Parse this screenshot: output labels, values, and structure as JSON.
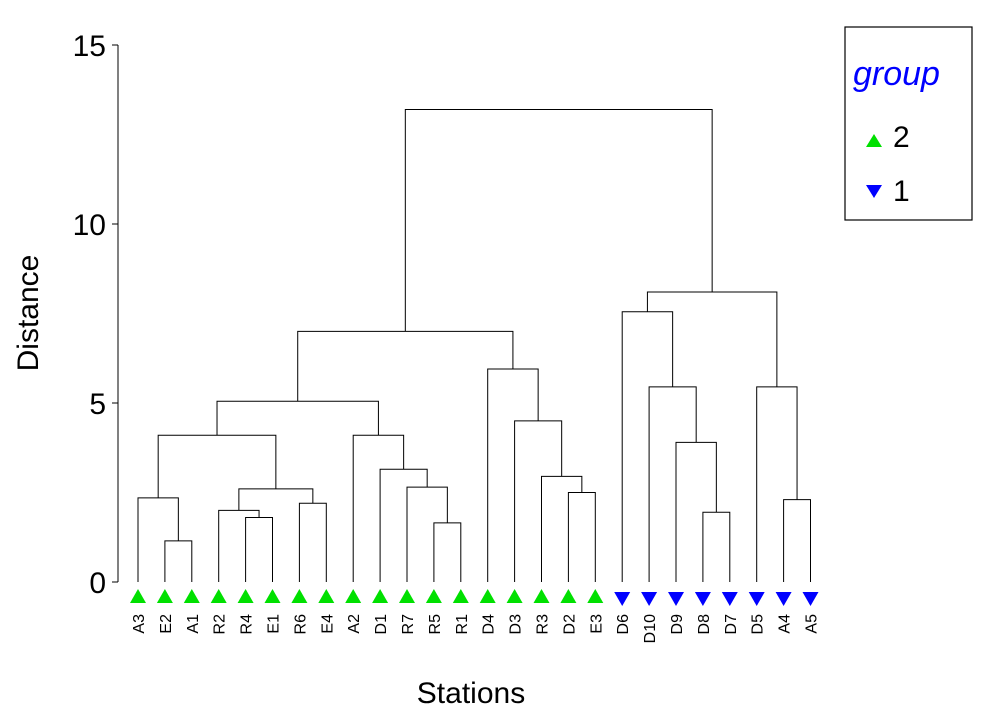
{
  "chart_data": {
    "type": "dendrogram",
    "title": "",
    "xlabel": "Stations",
    "ylabel": "Distance",
    "ylim": [
      0,
      15
    ],
    "yticks": [
      0,
      5,
      10,
      15
    ],
    "leaves": [
      {
        "label": "A3",
        "group": "2"
      },
      {
        "label": "E2",
        "group": "2"
      },
      {
        "label": "A1",
        "group": "2"
      },
      {
        "label": "R2",
        "group": "2"
      },
      {
        "label": "R4",
        "group": "2"
      },
      {
        "label": "E1",
        "group": "2"
      },
      {
        "label": "R6",
        "group": "2"
      },
      {
        "label": "E4",
        "group": "2"
      },
      {
        "label": "A2",
        "group": "2"
      },
      {
        "label": "D1",
        "group": "2"
      },
      {
        "label": "R7",
        "group": "2"
      },
      {
        "label": "R5",
        "group": "2"
      },
      {
        "label": "R1",
        "group": "2"
      },
      {
        "label": "D4",
        "group": "2"
      },
      {
        "label": "D3",
        "group": "2"
      },
      {
        "label": "R3",
        "group": "2"
      },
      {
        "label": "D2",
        "group": "2"
      },
      {
        "label": "E3",
        "group": "2"
      },
      {
        "label": "D6",
        "group": "1"
      },
      {
        "label": "D10",
        "group": "1"
      },
      {
        "label": "D9",
        "group": "1"
      },
      {
        "label": "D8",
        "group": "1"
      },
      {
        "label": "D7",
        "group": "1"
      },
      {
        "label": "D5",
        "group": "1"
      },
      {
        "label": "A4",
        "group": "1"
      },
      {
        "label": "A5",
        "group": "1"
      }
    ],
    "merges": [
      {
        "id": "m1",
        "left": 1,
        "right": 2,
        "height": 1.15
      },
      {
        "id": "m2",
        "left": 0,
        "right": "m1",
        "height": 2.35
      },
      {
        "id": "m3",
        "left": 4,
        "right": 5,
        "height": 1.8
      },
      {
        "id": "m4",
        "left": 3,
        "right": "m3",
        "height": 2.0
      },
      {
        "id": "m5",
        "left": 6,
        "right": 7,
        "height": 2.2
      },
      {
        "id": "m6",
        "left": "m4",
        "right": "m5",
        "height": 2.6
      },
      {
        "id": "m7",
        "left": "m2",
        "right": "m6",
        "height": 4.1
      },
      {
        "id": "m8",
        "left": 11,
        "right": 12,
        "height": 1.65
      },
      {
        "id": "m9",
        "left": 10,
        "right": "m8",
        "height": 2.65
      },
      {
        "id": "m10",
        "left": 9,
        "right": "m9",
        "height": 3.15
      },
      {
        "id": "m11",
        "left": 8,
        "right": "m10",
        "height": 4.1
      },
      {
        "id": "m12",
        "left": "m7",
        "right": "m11",
        "height": 5.05
      },
      {
        "id": "m13",
        "left": 16,
        "right": 17,
        "height": 2.5
      },
      {
        "id": "m14",
        "left": 15,
        "right": "m13",
        "height": 2.95
      },
      {
        "id": "m15",
        "left": 14,
        "right": "m14",
        "height": 4.5
      },
      {
        "id": "m16",
        "left": 13,
        "right": "m15",
        "height": 5.95
      },
      {
        "id": "m17",
        "left": "m12",
        "right": "m16",
        "height": 7.0
      },
      {
        "id": "m18",
        "left": 21,
        "right": 22,
        "height": 1.95
      },
      {
        "id": "m19",
        "left": 20,
        "right": "m18",
        "height": 3.9
      },
      {
        "id": "m20",
        "left": 19,
        "right": "m19",
        "height": 5.45
      },
      {
        "id": "m21",
        "left": 18,
        "right": "m20",
        "height": 7.55
      },
      {
        "id": "m22",
        "left": 24,
        "right": 25,
        "height": 2.3
      },
      {
        "id": "m23",
        "left": 23,
        "right": "m22",
        "height": 5.45
      },
      {
        "id": "m24",
        "left": "m21",
        "right": "m23",
        "height": 8.1
      },
      {
        "id": "m25",
        "left": "m17",
        "right": "m24",
        "height": 13.2
      }
    ],
    "legend": {
      "title": "group",
      "position": "top-right",
      "entries": [
        {
          "label": "2",
          "marker": "triangle-up",
          "color": "#00e000"
        },
        {
          "label": "1",
          "marker": "triangle-down",
          "color": "#0000ff"
        }
      ]
    }
  },
  "colors": {
    "group2": "#00e000",
    "group1": "#0000ff",
    "legend_title": "#0000ff",
    "lines": "#000000"
  }
}
